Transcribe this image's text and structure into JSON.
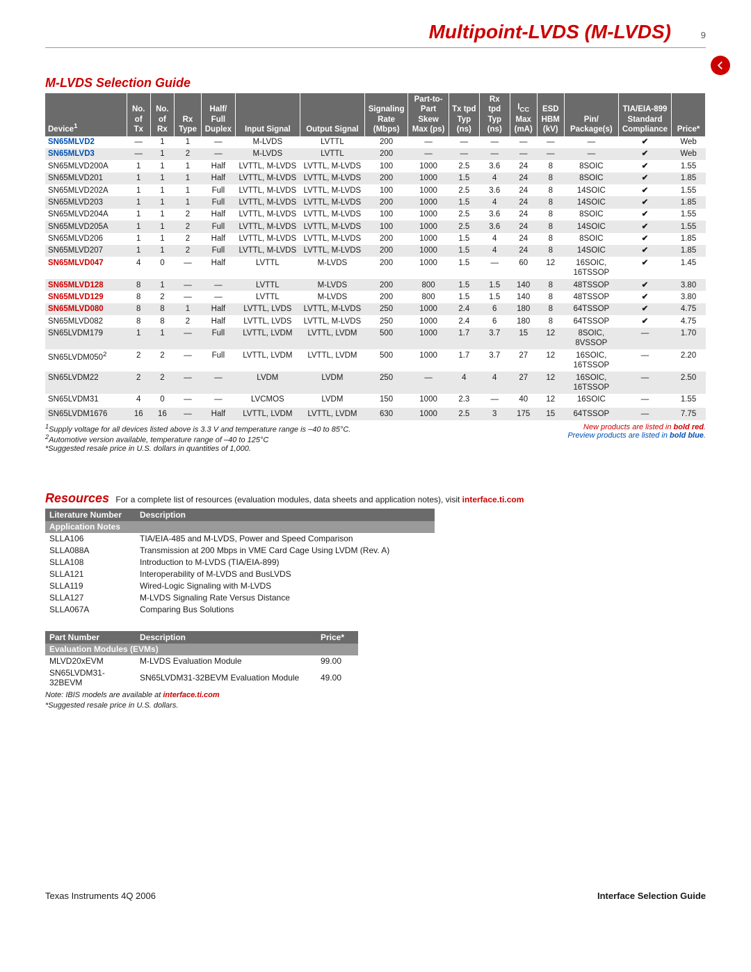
{
  "header": {
    "title": "Multipoint-LVDS (M-LVDS)",
    "page_number": "9"
  },
  "section_title": "M-LVDS Selection Guide",
  "columns": [
    {
      "l1": "",
      "l2": "",
      "l3": "Device<sup>1</sup>",
      "w": "12%"
    },
    {
      "l1": "No.",
      "l2": "of",
      "l3": "Tx",
      "w": "3.5%"
    },
    {
      "l1": "No.",
      "l2": "of",
      "l3": "Rx",
      "w": "3.5%"
    },
    {
      "l1": "",
      "l2": "Rx",
      "l3": "Type",
      "w": "4%"
    },
    {
      "l1": "Half/",
      "l2": "Full",
      "l3": "Duplex",
      "w": "5%"
    },
    {
      "l1": "",
      "l2": "",
      "l3": "Input Signal",
      "w": "9%"
    },
    {
      "l1": "",
      "l2": "",
      "l3": "Output Signal",
      "w": "9%"
    },
    {
      "l1": "Signaling",
      "l2": "Rate",
      "l3": "(Mbps)",
      "w": "6%"
    },
    {
      "l1": "Part-to-",
      "l2": "Part Skew",
      "l3": "Max (ps)",
      "w": "6%"
    },
    {
      "l1": "Tx tpd",
      "l2": "Typ",
      "l3": "(ns)",
      "w": "4.5%"
    },
    {
      "l1": "Rx tpd",
      "l2": "Typ",
      "l3": "(ns)",
      "w": "4.5%"
    },
    {
      "l1": "I<sub>CC</sub>",
      "l2": "Max",
      "l3": "(mA)",
      "w": "4%"
    },
    {
      "l1": "ESD",
      "l2": "HBM",
      "l3": "(kV)",
      "w": "4%"
    },
    {
      "l1": "",
      "l2": "Pin/",
      "l3": "Package(s)",
      "w": "8%"
    },
    {
      "l1": "TIA/EIA-899",
      "l2": "Standard",
      "l3": "Compliance",
      "w": "7.5%"
    },
    {
      "l1": "",
      "l2": "",
      "l3": "Price*",
      "w": "5%"
    }
  ],
  "rows": [
    {
      "cls": "dev-blue",
      "d": "SN65MLVD2",
      "v": [
        "—",
        "1",
        "1",
        "—",
        "M-LVDS",
        "LVTTL",
        "200",
        "—",
        "—",
        "—",
        "—",
        "—",
        "—",
        "✔",
        "Web"
      ],
      "shade": false
    },
    {
      "cls": "dev-blue",
      "d": "SN65MLVD3",
      "v": [
        "—",
        "1",
        "2",
        "—",
        "M-LVDS",
        "LVTTL",
        "200",
        "—",
        "—",
        "—",
        "—",
        "—",
        "—",
        "✔",
        "Web"
      ],
      "shade": true
    },
    {
      "cls": "",
      "d": "SN65MLVD200A",
      "v": [
        "1",
        "1",
        "1",
        "Half",
        "LVTTL, M-LVDS",
        "LVTTL, M-LVDS",
        "100",
        "1000",
        "2.5",
        "3.6",
        "24",
        "8",
        "8SOIC",
        "✔",
        "1.55"
      ],
      "shade": false
    },
    {
      "cls": "",
      "d": "SN65MLVD201",
      "v": [
        "1",
        "1",
        "1",
        "Half",
        "LVTTL, M-LVDS",
        "LVTTL, M-LVDS",
        "200",
        "1000",
        "1.5",
        "4",
        "24",
        "8",
        "8SOIC",
        "✔",
        "1.85"
      ],
      "shade": true
    },
    {
      "cls": "",
      "d": "SN65MLVD202A",
      "v": [
        "1",
        "1",
        "1",
        "Full",
        "LVTTL, M-LVDS",
        "LVTTL, M-LVDS",
        "100",
        "1000",
        "2.5",
        "3.6",
        "24",
        "8",
        "14SOIC",
        "✔",
        "1.55"
      ],
      "shade": false
    },
    {
      "cls": "",
      "d": "SN65MLVD203",
      "v": [
        "1",
        "1",
        "1",
        "Full",
        "LVTTL, M-LVDS",
        "LVTTL, M-LVDS",
        "200",
        "1000",
        "1.5",
        "4",
        "24",
        "8",
        "14SOIC",
        "✔",
        "1.85"
      ],
      "shade": true
    },
    {
      "cls": "",
      "d": "SN65MLVD204A",
      "v": [
        "1",
        "1",
        "2",
        "Half",
        "LVTTL, M-LVDS",
        "LVTTL, M-LVDS",
        "100",
        "1000",
        "2.5",
        "3.6",
        "24",
        "8",
        "8SOIC",
        "✔",
        "1.55"
      ],
      "shade": false
    },
    {
      "cls": "",
      "d": "SN65MLVD205A",
      "v": [
        "1",
        "1",
        "2",
        "Full",
        "LVTTL, M-LVDS",
        "LVTTL, M-LVDS",
        "100",
        "1000",
        "2.5",
        "3.6",
        "24",
        "8",
        "14SOIC",
        "✔",
        "1.55"
      ],
      "shade": true
    },
    {
      "cls": "",
      "d": "SN65MLVD206",
      "v": [
        "1",
        "1",
        "2",
        "Half",
        "LVTTL, M-LVDS",
        "LVTTL, M-LVDS",
        "200",
        "1000",
        "1.5",
        "4",
        "24",
        "8",
        "8SOIC",
        "✔",
        "1.85"
      ],
      "shade": false
    },
    {
      "cls": "",
      "d": "SN65MLVD207",
      "v": [
        "1",
        "1",
        "2",
        "Full",
        "LVTTL, M-LVDS",
        "LVTTL, M-LVDS",
        "200",
        "1000",
        "1.5",
        "4",
        "24",
        "8",
        "14SOIC",
        "✔",
        "1.85"
      ],
      "shade": true
    },
    {
      "cls": "dev-red",
      "d": "SN65MLVD047",
      "v": [
        "4",
        "0",
        "—",
        "Half",
        "LVTTL",
        "M-LVDS",
        "200",
        "1000",
        "1.5",
        "—",
        "60",
        "12",
        "16SOIC,<br>16TSSOP",
        "✔",
        "1.45"
      ],
      "shade": false
    },
    {
      "cls": "dev-red",
      "d": "SN65MLVD128",
      "v": [
        "8",
        "1",
        "—",
        "—",
        "LVTTL",
        "M-LVDS",
        "200",
        "800",
        "1.5",
        "1.5",
        "140",
        "8",
        "48TSSOP",
        "✔",
        "3.80"
      ],
      "shade": true
    },
    {
      "cls": "dev-red",
      "d": "SN65MLVD129",
      "v": [
        "8",
        "2",
        "—",
        "—",
        "LVTTL",
        "M-LVDS",
        "200",
        "800",
        "1.5",
        "1.5",
        "140",
        "8",
        "48TSSOP",
        "✔",
        "3.80"
      ],
      "shade": false
    },
    {
      "cls": "dev-red",
      "d": "SN65MLVD080",
      "v": [
        "8",
        "8",
        "1",
        "Half",
        "LVTTL, LVDS",
        "LVTTL, M-LVDS",
        "250",
        "1000",
        "2.4",
        "6",
        "180",
        "8",
        "64TSSOP",
        "✔",
        "4.75"
      ],
      "shade": true
    },
    {
      "cls": "",
      "d": "SN65MLVD082",
      "v": [
        "8",
        "8",
        "2",
        "Half",
        "LVTTL, LVDS",
        "LVTTL, M-LVDS",
        "250",
        "1000",
        "2.4",
        "6",
        "180",
        "8",
        "64TSSOP",
        "✔",
        "4.75"
      ],
      "shade": false
    },
    {
      "cls": "",
      "d": "SN65LVDM179",
      "v": [
        "1",
        "1",
        "—",
        "Full",
        "LVTTL, LVDM",
        "LVTTL, LVDM",
        "500",
        "1000",
        "1.7",
        "3.7",
        "15",
        "12",
        "8SOIC,<br>8VSSOP",
        "—",
        "1.70"
      ],
      "shade": true
    },
    {
      "cls": "",
      "d": "SN65LVDM050<sup>2</sup>",
      "v": [
        "2",
        "2",
        "—",
        "Full",
        "LVTTL, LVDM",
        "LVTTL, LVDM",
        "500",
        "1000",
        "1.7",
        "3.7",
        "27",
        "12",
        "16SOIC,<br>16TSSOP",
        "—",
        "2.20"
      ],
      "shade": false
    },
    {
      "cls": "",
      "d": "SN65LVDM22",
      "v": [
        "2",
        "2",
        "—",
        "—",
        "LVDM",
        "LVDM",
        "250",
        "—",
        "4",
        "4",
        "27",
        "12",
        "16SOIC,<br>16TSSOP",
        "—",
        "2.50"
      ],
      "shade": true
    },
    {
      "cls": "",
      "d": "SN65LVDM31",
      "v": [
        "4",
        "0",
        "—",
        "—",
        "LVCMOS",
        "LVDM",
        "150",
        "1000",
        "2.3",
        "—",
        "40",
        "12",
        "16SOIC",
        "—",
        "1.55"
      ],
      "shade": false
    },
    {
      "cls": "",
      "d": "",
      "v": [
        "",
        "",
        "",
        "",
        "",
        "",
        "",
        "",
        "",
        "",
        "",
        "",
        "",
        "",
        ""
      ],
      "shade": false
    },
    {
      "cls": "",
      "d": "SN65LVDM1676",
      "v": [
        "16",
        "16",
        "—",
        "Half",
        "LVTTL, LVDM",
        "LVTTL, LVDM",
        "630",
        "1000",
        "2.5",
        "3",
        "175",
        "15",
        "64TSSOP",
        "—",
        "7.75"
      ],
      "shade": true
    }
  ],
  "footnotes_left": [
    "<sup>1</sup>Supply voltage for all devices listed above is 3.3 V and temperature range is –40 to 85°C.",
    "<sup>2</sup>Automotive version available, temperature range of –40 to 125°C",
    "*Suggested resale price in U.S. dollars in quantities of 1,000."
  ],
  "footnotes_right": [
    {
      "text": "New products are listed in <b>bold red</b>.",
      "cls": "fn-red"
    },
    {
      "text": "Preview products are listed in <b>bold blue</b>.",
      "cls": "fn-blue"
    }
  ],
  "resources": {
    "lead": "Resources",
    "text": "For a complete list of resources (evaluation modules, data sheets and application notes), visit ",
    "link": "interface.ti.com"
  },
  "appnotes": {
    "headers": [
      "Literature Number",
      "Description"
    ],
    "widths": [
      "130px",
      "430px"
    ],
    "subheader": "Application Notes",
    "rows": [
      [
        "SLLA106",
        "TIA/EIA-485 and M-LVDS, Power and Speed Comparison"
      ],
      [
        "SLLA088A",
        "Transmission at 200 Mbps in VME Card Cage Using LVDM (Rev. A)"
      ],
      [
        "SLLA108",
        "Introduction to M-LVDS (TIA/EIA-899)"
      ],
      [
        "SLLA121",
        "Interoperability of M-LVDS and BusLVDS"
      ],
      [
        "SLLA119",
        "Wired-Logic Signaling with M-LVDS"
      ],
      [
        "SLLA127",
        "M-LVDS Signaling Rate Versus Distance"
      ],
      [
        "SLLA067A",
        "Comparing Bus Solutions"
      ]
    ]
  },
  "evm": {
    "headers": [
      "Part Number",
      "Description",
      "Price*"
    ],
    "widths": [
      "130px",
      "260px",
      "60px"
    ],
    "subheader": "Evaluation Modules (EVMs)",
    "rows": [
      [
        "MLVD20xEVM",
        "M-LVDS Evaluation Module",
        "99.00"
      ],
      [
        "SN65LVDM31-32BEVM",
        "SN65LVDM31-32BEVM Evaluation Module",
        "49.00"
      ]
    ]
  },
  "res_notes": [
    "Note: IBIS models are available at <a href='#'>interface.ti.com</a>",
    "*Suggested resale price in U.S. dollars."
  ],
  "footer": {
    "left": "Texas Instruments   4Q 2006",
    "right": "Interface Selection Guide"
  }
}
